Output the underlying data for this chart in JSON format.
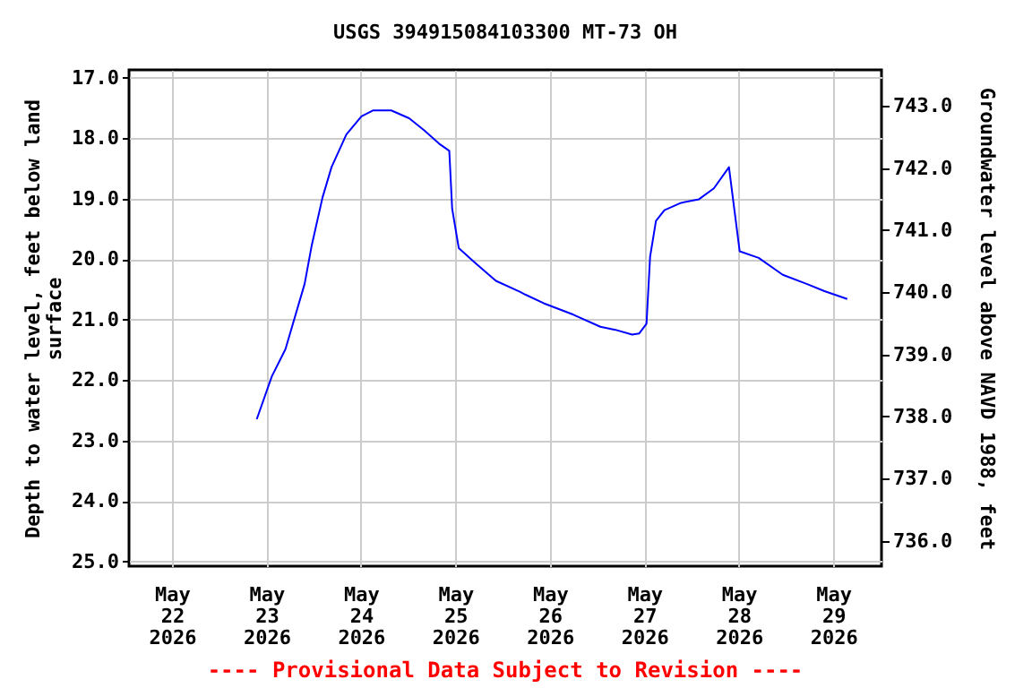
{
  "chart_data": {
    "type": "line",
    "title": "USGS 394915084103300 MT-73 OH",
    "ylabel": "Depth to water level, feet below land\nsurface",
    "y2label": "Groundwater level above NAVD 1988, feet",
    "annotations": [
      "---- Provisional Data Subject to Revision ----"
    ],
    "x": [
      "2026-05-22T21:32",
      "2026-05-23T01:22",
      "2026-05-23T04:50",
      "2026-05-23T09:42",
      "2026-05-23T11:31",
      "2026-05-23T14:15",
      "2026-05-23T16:32",
      "2026-05-23T20:18",
      "2026-05-24T00:08",
      "2026-05-24T03:09",
      "2026-05-24T07:42",
      "2026-05-24T12:15",
      "2026-05-24T16:05",
      "2026-05-24T19:51",
      "2026-05-24T22:27",
      "2026-05-24T23:11",
      "2026-05-25T00:52",
      "2026-05-25T04:58",
      "2026-05-25T10:18",
      "2026-05-25T16:21",
      "2026-05-25T17:51",
      "2026-05-25T22:24",
      "2026-05-26T06:00",
      "2026-05-26T12:50",
      "2026-05-26T16:38",
      "2026-05-26T20:54",
      "2026-05-26T22:43",
      "2026-05-27T00:33",
      "2026-05-27T01:28",
      "2026-05-27T02:57",
      "2026-05-27T05:06",
      "2026-05-27T09:20",
      "2026-05-27T13:53",
      "2026-05-27T17:40",
      "2026-05-27T21:30",
      "2026-05-28T00:13",
      "2026-05-28T05:03",
      "2026-05-28T11:10",
      "2026-05-28T17:13",
      "2026-05-28T21:46",
      "2026-05-29T03:33"
    ],
    "series": [
      {
        "color": "#0000ff",
        "values": [
          22.65,
          21.94,
          21.49,
          20.41,
          19.77,
          18.98,
          18.48,
          17.94,
          17.64,
          17.54,
          17.54,
          17.67,
          17.87,
          18.09,
          18.21,
          19.17,
          19.82,
          20.06,
          20.36,
          20.54,
          20.59,
          20.73,
          20.92,
          21.12,
          21.17,
          21.25,
          21.23,
          21.07,
          19.96,
          19.37,
          19.19,
          19.07,
          19.01,
          18.83,
          18.48,
          19.87,
          19.98,
          20.26,
          20.41,
          20.53,
          20.66
        ]
      }
    ],
    "xlim": [
      "2026-05-21T13:05",
      "2026-05-29T12:15"
    ],
    "xticks": [
      {
        "value": "2026-05-22",
        "label": "May\n22\n2026"
      },
      {
        "value": "2026-05-23",
        "label": "May\n23\n2026"
      },
      {
        "value": "2026-05-24",
        "label": "May\n24\n2026"
      },
      {
        "value": "2026-05-25",
        "label": "May\n25\n2026"
      },
      {
        "value": "2026-05-26",
        "label": "May\n26\n2026"
      },
      {
        "value": "2026-05-27",
        "label": "May\n27\n2026"
      },
      {
        "value": "2026-05-28",
        "label": "May\n28\n2026"
      },
      {
        "value": "2026-05-29",
        "label": "May\n29\n2026"
      }
    ],
    "ylim": [
      25.08,
      16.87
    ],
    "yticks": [
      {
        "value": 17,
        "label": "17.0"
      },
      {
        "value": 18,
        "label": "18.0"
      },
      {
        "value": 19,
        "label": "19.0"
      },
      {
        "value": 20,
        "label": "20.0"
      },
      {
        "value": 21,
        "label": "21.0"
      },
      {
        "value": 22,
        "label": "22.0"
      },
      {
        "value": 23,
        "label": "23.0"
      },
      {
        "value": 24,
        "label": "24.0"
      },
      {
        "value": 25,
        "label": "25.0"
      }
    ],
    "y2lim": [
      735.59,
      743.58
    ],
    "y2ticks": [
      {
        "value": 736,
        "label": "736.0"
      },
      {
        "value": 737,
        "label": "737.0"
      },
      {
        "value": 738,
        "label": "738.0"
      },
      {
        "value": 739,
        "label": "739.0"
      },
      {
        "value": 740,
        "label": "740.0"
      },
      {
        "value": 741,
        "label": "741.0"
      },
      {
        "value": 742,
        "label": "742.0"
      },
      {
        "value": 743,
        "label": "743.0"
      }
    ],
    "grid": true
  }
}
